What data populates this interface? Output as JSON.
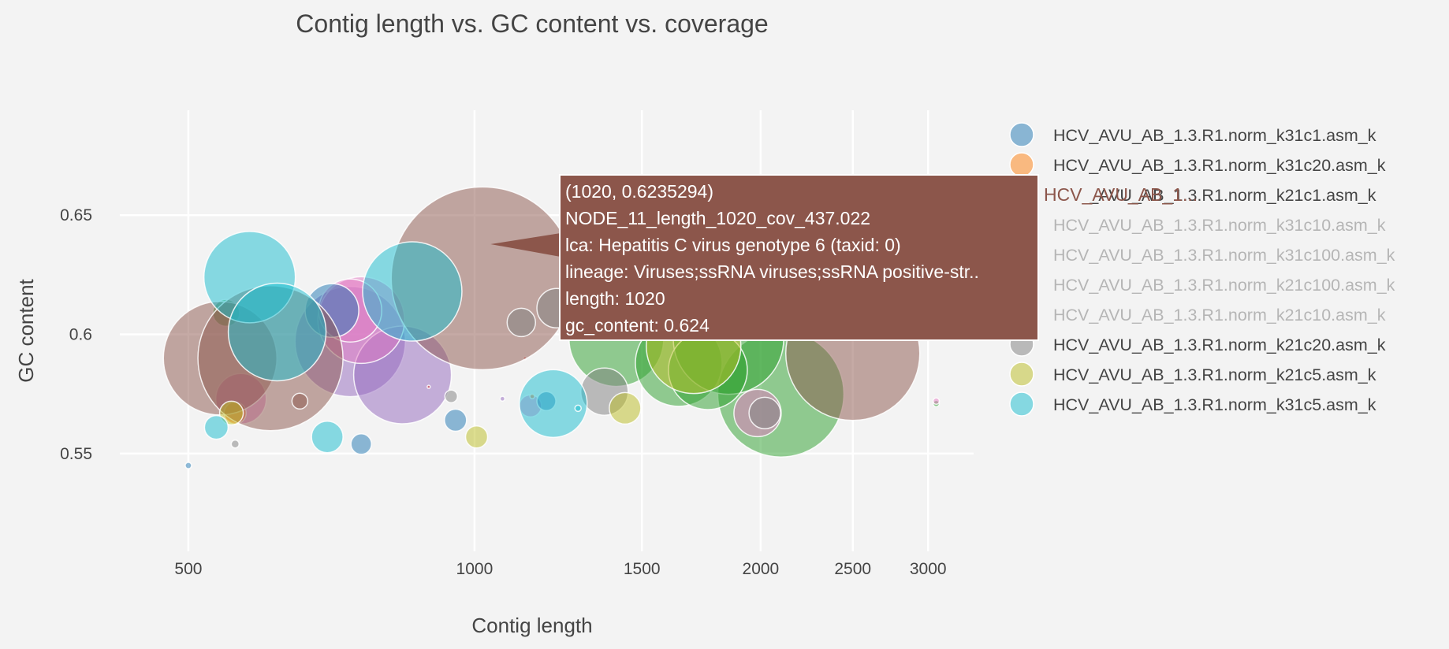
{
  "chart_data": {
    "type": "scatter",
    "title": "Contig length vs. GC content vs. coverage",
    "xlabel": "Contig length",
    "ylabel": "GC content",
    "x_scale": "log",
    "xlim": [
      440,
      3350
    ],
    "ylim": [
      0.509,
      0.694
    ],
    "x_ticks": [
      500,
      1000,
      1500,
      2000,
      2500,
      3000
    ],
    "x_tick_labels": [
      "500",
      "1000",
      "1500",
      "2000",
      "2500",
      "3000"
    ],
    "y_ticks": [
      0.55,
      0.6,
      0.65
    ],
    "y_tick_labels": [
      "0.55",
      "0.6",
      "0.65"
    ],
    "grid": true,
    "legend_position": "right",
    "series": [
      {
        "name": "HCV_AVU_AB_1.3.R1.norm_k31c1.asm_k",
        "color": "#1f77b4",
        "visible": true,
        "points": [
          {
            "x": 708,
            "y": 0.61,
            "r": 34
          },
          {
            "x": 955,
            "y": 0.564,
            "r": 14
          },
          {
            "x": 760,
            "y": 0.554,
            "r": 13
          },
          {
            "x": 1190,
            "y": 0.572,
            "r": 12
          },
          {
            "x": 500,
            "y": 0.545,
            "r": 4
          }
        ]
      },
      {
        "name": "HCV_AVU_AB_1.3.R1.norm_k31c20.asm_k",
        "color": "#ff7f0e",
        "visible": true,
        "points": [
          {
            "x": 560,
            "y": 0.567,
            "r": 14
          },
          {
            "x": 1150,
            "y": 0.574,
            "r": 3
          }
        ]
      },
      {
        "name": "HCV_AVU_AB_1.3.R1.norm_k21c1.asm_k",
        "color": "#8c564b",
        "visible": true,
        "points": [
          {
            "x": 1020,
            "y": 0.6235294,
            "r": 116
          },
          {
            "x": 540,
            "y": 0.59,
            "r": 72
          },
          {
            "x": 610,
            "y": 0.59,
            "r": 92
          },
          {
            "x": 2500,
            "y": 0.592,
            "r": 85
          },
          {
            "x": 655,
            "y": 0.572,
            "r": 10
          }
        ]
      },
      {
        "name": "HCV_AVU_AB_1.3.R1.norm_k31c10.asm_k",
        "color": "#d62728",
        "visible": false,
        "points": []
      },
      {
        "name": "HCV_AVU_AB_1.3.R1.norm_k31c100.asm_k",
        "color": "#9467bd",
        "visible": false,
        "points": []
      },
      {
        "name": "HCV_AVU_AB_1.3.R1.norm_k21c100.asm_k",
        "color": "#2ca02c",
        "visible": false,
        "points": []
      },
      {
        "name": "HCV_AVU_AB_1.3.R1.norm_k21c10.asm_k",
        "color": "#e377c2",
        "visible": false,
        "points": []
      },
      {
        "name": "HCV_AVU_AB_1.3.R1.norm_k21c20.asm_k",
        "color": "#7f7f7f",
        "visible": true,
        "points": [
          {
            "x": 1120,
            "y": 0.605,
            "r": 18
          },
          {
            "x": 1220,
            "y": 0.611,
            "r": 25
          },
          {
            "x": 1370,
            "y": 0.576,
            "r": 30
          },
          {
            "x": 945,
            "y": 0.574,
            "r": 8
          },
          {
            "x": 2020,
            "y": 0.567,
            "r": 20
          },
          {
            "x": 560,
            "y": 0.554,
            "r": 5
          }
        ]
      },
      {
        "name": "HCV_AVU_AB_1.3.R1.norm_k21c5.asm_k",
        "color": "#bcbd22",
        "visible": true,
        "points": [
          {
            "x": 1005,
            "y": 0.557,
            "r": 14
          },
          {
            "x": 1440,
            "y": 0.569,
            "r": 20
          },
          {
            "x": 1700,
            "y": 0.595,
            "r": 60
          },
          {
            "x": 555,
            "y": 0.567,
            "r": 15
          }
        ]
      },
      {
        "name": "HCV_AVU_AB_1.3.R1.norm_k31c5.asm_k",
        "color": "#17becf",
        "visible": true,
        "points": [
          {
            "x": 580,
            "y": 0.624,
            "r": 58
          },
          {
            "x": 620,
            "y": 0.601,
            "r": 62
          },
          {
            "x": 860,
            "y": 0.618,
            "r": 63
          },
          {
            "x": 1210,
            "y": 0.571,
            "r": 43
          },
          {
            "x": 700,
            "y": 0.557,
            "r": 20
          },
          {
            "x": 535,
            "y": 0.561,
            "r": 15
          },
          {
            "x": 1285,
            "y": 0.569,
            "r": 4
          }
        ]
      }
    ],
    "hidden_series_points": [
      {
        "color": "#9467bd",
        "points": [
          {
            "x": 740,
            "y": 0.597,
            "r": 70
          },
          {
            "x": 840,
            "y": 0.583,
            "r": 62
          },
          {
            "x": 1070,
            "y": 0.573,
            "r": 3
          }
        ]
      },
      {
        "color": "#2ca02c",
        "points": [
          {
            "x": 1410,
            "y": 0.598,
            "r": 60
          },
          {
            "x": 1640,
            "y": 0.588,
            "r": 55
          },
          {
            "x": 2100,
            "y": 0.575,
            "r": 80
          },
          {
            "x": 1850,
            "y": 0.598,
            "r": 70
          },
          {
            "x": 1760,
            "y": 0.585,
            "r": 50
          },
          {
            "x": 548,
            "y": 0.609,
            "r": 17
          },
          {
            "x": 3060,
            "y": 0.571,
            "r": 4
          }
        ]
      },
      {
        "color": "#e377c2",
        "points": [
          {
            "x": 760,
            "y": 0.606,
            "r": 55
          },
          {
            "x": 740,
            "y": 0.61,
            "r": 40
          },
          {
            "x": 568,
            "y": 0.573,
            "r": 32
          },
          {
            "x": 1985,
            "y": 0.567,
            "r": 30
          },
          {
            "x": 1145,
            "y": 0.57,
            "r": 14
          },
          {
            "x": 3060,
            "y": 0.572,
            "r": 4
          }
        ]
      },
      {
        "color": "#d62728",
        "points": [
          {
            "x": 895,
            "y": 0.578,
            "r": 2
          },
          {
            "x": 1130,
            "y": 0.59,
            "r": 2
          }
        ]
      }
    ],
    "tooltip": {
      "series_index": 2,
      "point_index": 0,
      "legend_short_label": "HCV_AVU_AB_1...",
      "lines": [
        "(1020, 0.6235294)",
        "NODE_11_length_1020_cov_437.022",
        "lca: Hepatitis C virus genotype 6 (taxid: 0)",
        "lineage: Viruses;ssRNA viruses;ssRNA positive-str..",
        "length: 1020",
        "gc_content: 0.624"
      ],
      "background": "#8c564b"
    }
  }
}
